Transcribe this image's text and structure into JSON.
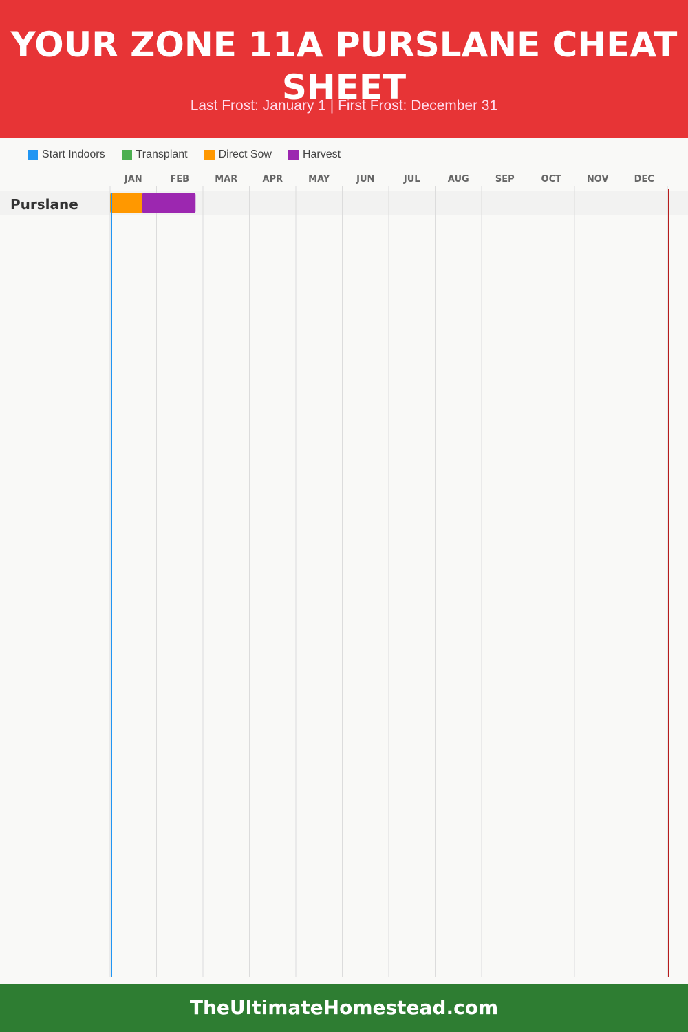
{
  "header": {
    "title": "YOUR ZONE 11A PURSLANE CHEAT SHEET",
    "subtitle": "Last Frost: January 1 | First Frost: December 31"
  },
  "legend": [
    {
      "label": "Start Indoors",
      "color": "#2196f3"
    },
    {
      "label": "Transplant",
      "color": "#4caf50"
    },
    {
      "label": "Direct Sow",
      "color": "#ff9800"
    },
    {
      "label": "Harvest",
      "color": "#9c27b0"
    }
  ],
  "chart_data": {
    "type": "gantt",
    "months": [
      "JAN",
      "FEB",
      "MAR",
      "APR",
      "MAY",
      "JUN",
      "JUL",
      "AUG",
      "SEP",
      "OCT",
      "NOV",
      "DEC"
    ],
    "rows": [
      {
        "label": "Purslane",
        "bars": [
          {
            "phase": "Direct Sow",
            "start": "Jan 1",
            "end": "Jan 22",
            "color": "#ff9800"
          },
          {
            "phase": "Harvest",
            "start": "Jan 22",
            "end": "Feb 26",
            "color": "#9c27b0"
          }
        ]
      }
    ],
    "last_frost": {
      "date": "Jan 1",
      "color": "#2196f3"
    },
    "first_frost": {
      "date": "Dec 31",
      "color": "#b71c1c"
    },
    "grid": true
  },
  "footer": {
    "text": "TheUltimateHomestead.com"
  }
}
